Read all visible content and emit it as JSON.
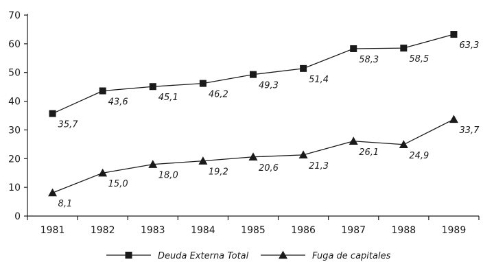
{
  "chart_data": {
    "type": "line",
    "x": [
      "1981",
      "1982",
      "1983",
      "1984",
      "1985",
      "1986",
      "1987",
      "1988",
      "1989"
    ],
    "ylim": [
      0,
      70
    ],
    "yticks": [
      0,
      10,
      20,
      30,
      40,
      50,
      60,
      70
    ],
    "grid": false,
    "legend_position": "bottom",
    "series": [
      {
        "name": "Deuda Externa Total",
        "marker": "square",
        "values": [
          35.7,
          43.6,
          45.1,
          46.2,
          49.3,
          51.4,
          58.3,
          58.5,
          63.3
        ],
        "labels": [
          "35,7",
          "43,6",
          "45,1",
          "46,2",
          "49,3",
          "51,4",
          "58,3",
          "58,5",
          "63,3"
        ]
      },
      {
        "name": "Fuga de capitales",
        "marker": "triangle",
        "values": [
          8.1,
          15.0,
          18.0,
          19.2,
          20.6,
          21.3,
          26.1,
          24.9,
          33.7
        ],
        "labels": [
          "8,1",
          "15,0",
          "18,0",
          "19,2",
          "20,6",
          "21,3",
          "26,1",
          "24,9",
          "33,7"
        ]
      }
    ],
    "colors": {
      "line": "#1a1a1a",
      "marker": "#1a1a1a",
      "text": "#1a1a1a"
    }
  }
}
